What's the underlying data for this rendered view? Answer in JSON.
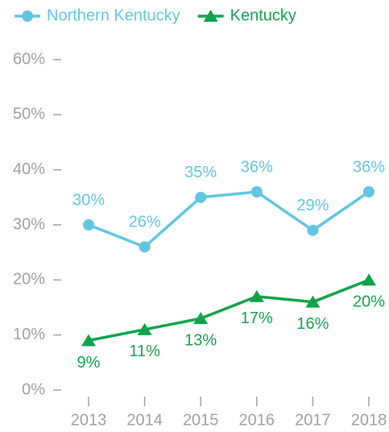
{
  "chart_data": {
    "type": "line",
    "categories": [
      "2013",
      "2014",
      "2015",
      "2016",
      "2017",
      "2018"
    ],
    "series": [
      {
        "name": "Northern Kentucky",
        "color": "#62c6e0",
        "marker": "circle",
        "label_position": "above",
        "values": [
          30,
          26,
          35,
          36,
          29,
          36
        ],
        "value_labels": [
          "30%",
          "26%",
          "35%",
          "36%",
          "29%",
          "36%"
        ]
      },
      {
        "name": "Kentucky",
        "color": "#10a34a",
        "marker": "triangle",
        "label_position": "below",
        "values": [
          9,
          11,
          13,
          17,
          16,
          20
        ],
        "value_labels": [
          "9%",
          "11%",
          "13%",
          "17%",
          "16%",
          "20%"
        ]
      }
    ],
    "ylim": [
      0,
      60
    ],
    "yticks": [
      {
        "value": 0,
        "label": "0%"
      },
      {
        "value": 10,
        "label": "10%"
      },
      {
        "value": 20,
        "label": "20%"
      },
      {
        "value": 30,
        "label": "30%"
      },
      {
        "value": 40,
        "label": "40%"
      },
      {
        "value": 50,
        "label": "50%"
      },
      {
        "value": 60,
        "label": "60%"
      }
    ],
    "grid": false,
    "legend": "top"
  }
}
